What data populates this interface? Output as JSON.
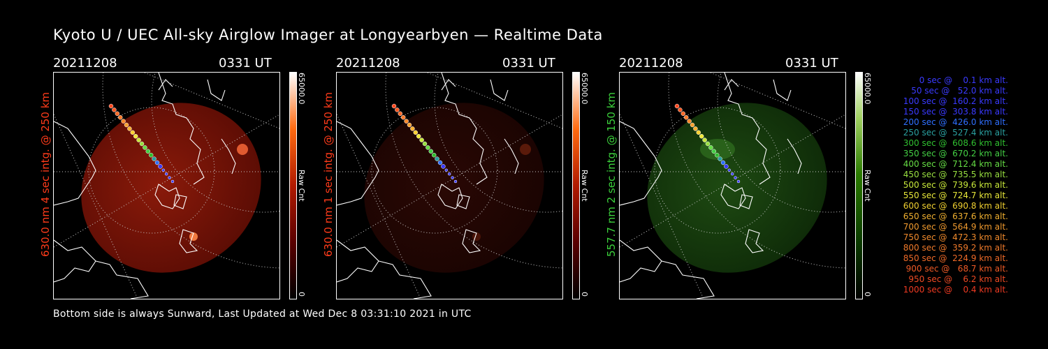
{
  "title": "Kyoto U / UEC All-sky Airglow Imager at Longyearbyen — Realtime Data",
  "footer": "Bottom side is always Sunward, Last Updated at Wed Dec  8 03:31:10 2021 in UTC",
  "panels": [
    {
      "date": "20211208",
      "time": "0331 UT",
      "label": "630.0 nm 4 sec intg. @ 250 km",
      "label_color": "#ff3b1a",
      "cbar_max": "65000.0",
      "cbar_min": "0",
      "cbar_unit": "Raw Cnt",
      "tint": "red"
    },
    {
      "date": "20211208",
      "time": "0331 UT",
      "label": "630.0 nm 1 sec intg. @ 250 km",
      "label_color": "#ff3b1a",
      "cbar_max": "65000.0",
      "cbar_min": "0",
      "cbar_unit": "Raw Cnt",
      "tint": "dimred"
    },
    {
      "date": "20211208",
      "time": "0331 UT",
      "label": "557.7 nm 2 sec intg. @ 150 km",
      "label_color": "#3bd13b",
      "cbar_max": "65000.0",
      "cbar_min": "0",
      "cbar_unit": "Raw Cnt",
      "tint": "green"
    }
  ],
  "legend": [
    {
      "text": "   0 sec @    0.1 km alt.",
      "color": "#3a3aff"
    },
    {
      "text": "  50 sec @   52.0 km alt.",
      "color": "#3a3aff"
    },
    {
      "text": " 100 sec @  160.2 km alt.",
      "color": "#3a3aff"
    },
    {
      "text": " 150 sec @  303.8 km alt.",
      "color": "#3a3aff"
    },
    {
      "text": " 200 sec @  426.0 km alt.",
      "color": "#2f6fff"
    },
    {
      "text": " 250 sec @  527.4 km alt.",
      "color": "#2aa0a0"
    },
    {
      "text": " 300 sec @  608.6 km alt.",
      "color": "#30c030"
    },
    {
      "text": " 350 sec @  670.2 km alt.",
      "color": "#44d044"
    },
    {
      "text": " 400 sec @  712.4 km alt.",
      "color": "#66dd44"
    },
    {
      "text": " 450 sec @  735.5 km alt.",
      "color": "#99e040"
    },
    {
      "text": " 500 sec @  739.6 km alt.",
      "color": "#c8e83a"
    },
    {
      "text": " 550 sec @  724.7 km alt.",
      "color": "#e8e83a"
    },
    {
      "text": " 600 sec @  690.8 km alt.",
      "color": "#f0d030"
    },
    {
      "text": " 650 sec @  637.6 km alt.",
      "color": "#f0b030"
    },
    {
      "text": " 700 sec @  564.9 km alt.",
      "color": "#f09a2e"
    },
    {
      "text": " 750 sec @  472.3 km alt.",
      "color": "#f08a2c"
    },
    {
      "text": " 800 sec @  359.2 km alt.",
      "color": "#f07a2a"
    },
    {
      "text": " 850 sec @  224.9 km alt.",
      "color": "#ee6a28"
    },
    {
      "text": " 900 sec @   68.7 km alt.",
      "color": "#ee5a26"
    },
    {
      "text": " 950 sec @    6.2 km alt.",
      "color": "#ee4a24"
    },
    {
      "text": "1000 sec @    0.4 km alt.",
      "color": "#ee3a22"
    }
  ]
}
